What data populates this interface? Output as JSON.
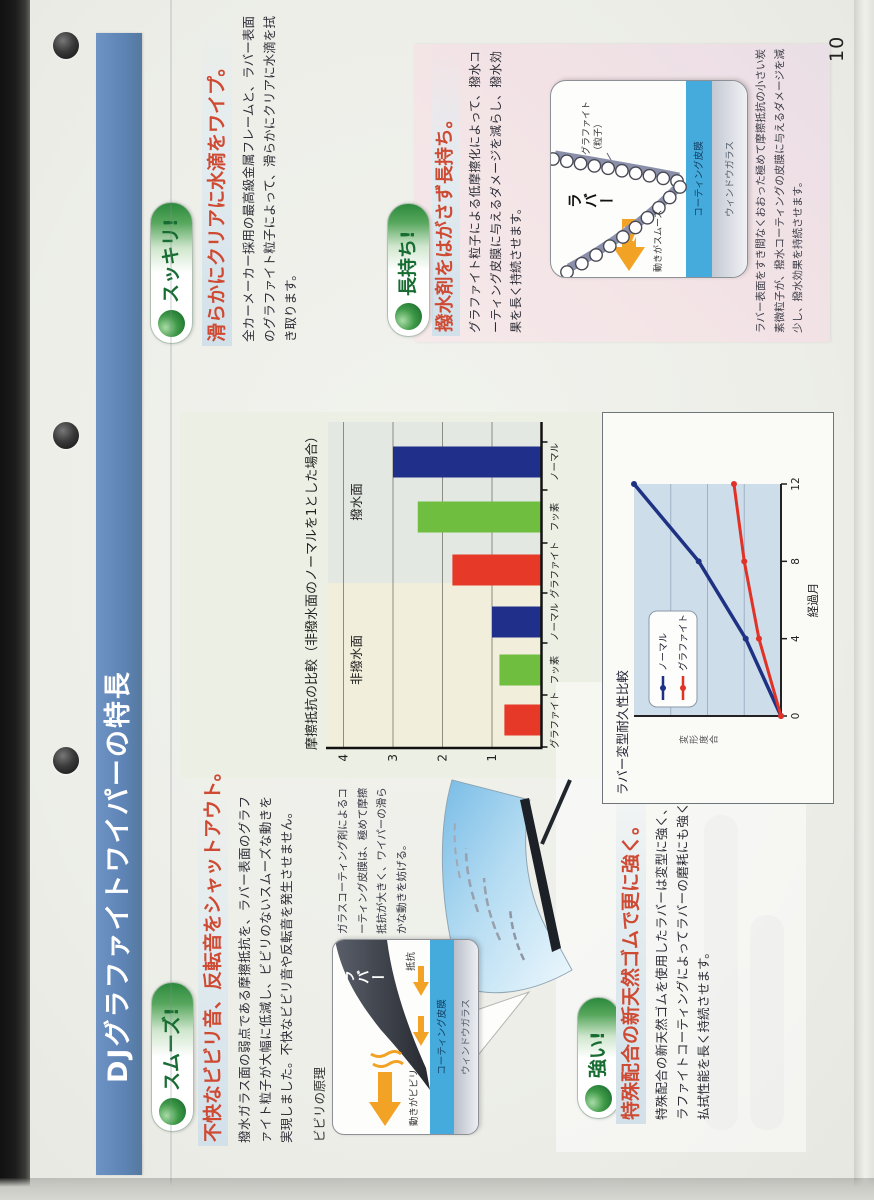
{
  "page": {
    "number": "10"
  },
  "title_bar": {
    "title": "DJグラファイトワイパーの特長"
  },
  "colors": {
    "title_bar_blue": "#5f85b8",
    "heading_red": "#cf4a33",
    "badge_green": "#166c31",
    "bar_graphite_red": "#e63928",
    "bar_fluorine_green": "#6fbe40",
    "bar_normal_navy": "#1f2f8a",
    "arrow_orange": "#f2a325",
    "coating_blue": "#45aadc"
  },
  "sections": {
    "smooth": {
      "badge": "スムーズ!",
      "heading": "不快なビビリ音、反転音をシャットアウト。",
      "body": "撥水ガラス面の弱点である摩擦抵抗を、ラバー表面のグラファイト粒子が大幅に低減し、ビビリのないスムーズな動きを実現しました。不快なビビリ音や反転音を発生させません。",
      "diagram": {
        "label": "ビビリの原理",
        "rubber": "ラバー",
        "resistance": "抵抗",
        "motion": "動きがビビリ",
        "coating": "コーティング皮膜",
        "glass": "ウィンドウガラス",
        "annotation": "ガラスコーティング剤によるコーティング皮膜は、極めて摩擦抵抗が大きく、ワイパーの滑らかな動きを妨げる。"
      }
    },
    "clear": {
      "badge": "スッキリ!",
      "heading": "滑らかにクリアに水滴をワイプ。",
      "body": "全カーメーカー採用の最高級金属フレームと、ラバー表面のグラファイト粒子によって、滑らかにクリアに水滴を拭き取ります。"
    },
    "longlast": {
      "badge": "長持ち!",
      "heading": "撥水剤をはがさず長持ち。",
      "body": "グラファイト粒子による低摩擦化によって、撥水コーティング皮膜に与えるダメージを減らし、撥水効果を長く持続させます。",
      "diagram": {
        "particle": "グラファイト（粒子）",
        "rubber": "ラバー",
        "motion": "動きがスムーズ",
        "coating": "コーティング皮膜",
        "glass": "ウィンドウガラス"
      },
      "caption": "ラバー表面をすき間なくおおった極めて摩擦抵抗の小さい炭素微粒子が、撥水コーティングの皮膜に与えるダメージを減少し、撥水効果を持続させます。"
    },
    "strong": {
      "badge": "強い!",
      "heading": "特殊配合の新天然ゴムで更に強く。",
      "body": "特殊配合の新天然ゴムを使用したラバーは変型に強く、更にグラファイトコーティングによってラバーの磨耗にも強く、高い払拭性能を長く持続させます。"
    }
  },
  "chart_data": [
    {
      "type": "bar",
      "title": "摩擦抵抗の比較（非撥水面のノーマルを1とした場合）",
      "group_labels": [
        "非撥水面",
        "撥水面"
      ],
      "categories": [
        "グラファイト",
        "フッ素",
        "ノーマル",
        "グラファイト",
        "フッ素",
        "ノーマル"
      ],
      "values": [
        0.75,
        0.85,
        1.0,
        1.8,
        2.5,
        3.0
      ],
      "colors": [
        "#e63928",
        "#6fbe40",
        "#1f2f8a",
        "#e63928",
        "#6fbe40",
        "#1f2f8a"
      ],
      "ylim": [
        0,
        4
      ],
      "yticks": [
        1,
        2,
        3,
        4
      ],
      "grid": true,
      "xlabel": "",
      "ylabel": ""
    },
    {
      "type": "line",
      "title": "ラバー変型耐久性比較",
      "xlabel": "経過月",
      "ylabel": "変形度合",
      "xticks": [
        0,
        4,
        8,
        12
      ],
      "ylim": [
        0,
        1
      ],
      "grid": true,
      "legend_position": "upper-left",
      "series": [
        {
          "name": "ノーマル",
          "color": "#1e3182",
          "x": [
            0,
            4,
            8,
            12
          ],
          "values": [
            0,
            0.24,
            0.56,
            1.0
          ]
        },
        {
          "name": "グラファイト",
          "color": "#e03226",
          "x": [
            0,
            4,
            8,
            12
          ],
          "values": [
            0,
            0.15,
            0.25,
            0.32
          ]
        }
      ]
    }
  ]
}
